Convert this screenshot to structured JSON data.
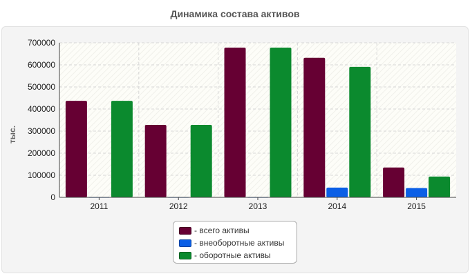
{
  "chart_data": {
    "type": "bar",
    "title": "Динамика состава активов",
    "ylabel": "тыс.",
    "xlabel": "",
    "categories": [
      "2011",
      "2012",
      "2013",
      "2014",
      "2015"
    ],
    "ylim": [
      0,
      700000
    ],
    "yticks": [
      0,
      100000,
      200000,
      300000,
      400000,
      500000,
      600000,
      700000
    ],
    "grid": true,
    "legend_position": "bottom",
    "series": [
      {
        "name": "- всего активы",
        "color": "#660033",
        "values": [
          437000,
          328000,
          678000,
          632000,
          135000
        ]
      },
      {
        "name": "- внеоборотные активы",
        "color": "#0b5fe6",
        "values": [
          1000,
          1000,
          1000,
          44000,
          42000
        ]
      },
      {
        "name": "- оборотные активы",
        "color": "#0b8a2e",
        "values": [
          437000,
          328000,
          678000,
          591000,
          94000
        ]
      }
    ]
  }
}
